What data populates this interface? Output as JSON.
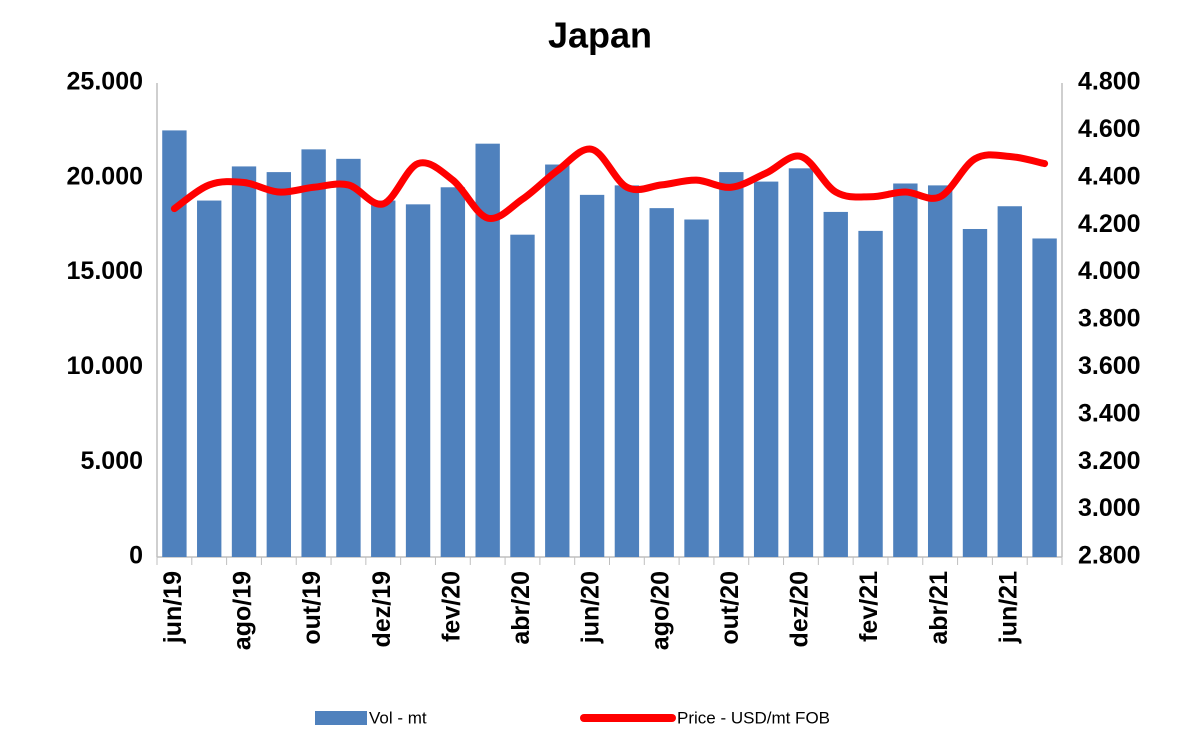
{
  "chart_data": {
    "type": "bar-line",
    "title": "Japan",
    "categories": [
      "jun/19",
      null,
      "ago/19",
      null,
      "out/19",
      null,
      "dez/19",
      null,
      "fev/20",
      null,
      "abr/20",
      null,
      "jun/20",
      null,
      "ago/20",
      null,
      "out/20",
      null,
      "dez/20",
      null,
      "fev/21",
      null,
      "abr/21",
      null,
      "jun/21",
      null
    ],
    "series": [
      {
        "name": "Vol - mt",
        "type": "bar",
        "color": "#4f81bd",
        "values": [
          22500,
          18800,
          20600,
          20300,
          21500,
          21000,
          18800,
          18600,
          19500,
          21800,
          17000,
          20700,
          19100,
          19600,
          18400,
          17800,
          20300,
          19800,
          20500,
          18200,
          17200,
          19700,
          19600,
          17300,
          18500,
          16800
        ]
      },
      {
        "name": "Price - USD/mt FOB",
        "type": "line",
        "axis": "y2",
        "color": "#ff0000",
        "values": [
          4270,
          4370,
          4380,
          4340,
          4360,
          4370,
          4290,
          4460,
          4390,
          4230,
          4310,
          4430,
          4520,
          4360,
          4370,
          4390,
          4360,
          4420,
          4490,
          4340,
          4320,
          4340,
          4320,
          4480,
          4490,
          4460
        ]
      }
    ],
    "ylim": [
      0,
      25000
    ],
    "yticks": [
      0,
      {
        "value": 5000,
        "label": "5.000"
      },
      {
        "value": 10000,
        "label": "10.000"
      },
      {
        "value": 15000,
        "label": "15.000"
      },
      {
        "value": 20000,
        "label": "20.000"
      },
      {
        "value": 25000,
        "label": "25.000"
      }
    ],
    "y2lim": [
      2800,
      4800
    ],
    "y2ticks": [
      {
        "value": 2800,
        "label": "2.800"
      },
      {
        "value": 3000,
        "label": "3.000"
      },
      {
        "value": 3200,
        "label": "3.200"
      },
      {
        "value": 3400,
        "label": "3.400"
      },
      {
        "value": 3600,
        "label": "3.600"
      },
      {
        "value": 3800,
        "label": "3.800"
      },
      {
        "value": 4000,
        "label": "4.000"
      },
      {
        "value": 4200,
        "label": "4.200"
      },
      {
        "value": 4400,
        "label": "4.400"
      },
      {
        "value": 4600,
        "label": "4.600"
      },
      {
        "value": 4800,
        "label": "4.800"
      }
    ],
    "grid": false,
    "legend": "bottom"
  }
}
